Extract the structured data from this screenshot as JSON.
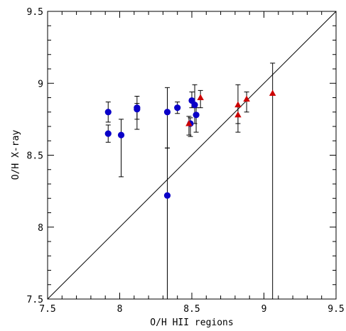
{
  "chart_data": {
    "type": "scatter",
    "xlabel": "O/H HII regions",
    "ylabel": "O/H X-ray",
    "xlim": [
      7.5,
      9.5
    ],
    "ylim": [
      7.5,
      9.5
    ],
    "x_ticks": [
      7.5,
      8,
      8.5,
      9,
      9.5
    ],
    "y_ticks": [
      7.5,
      8,
      8.5,
      9,
      9.5
    ],
    "x_tick_labels": [
      "7.5",
      "8",
      "8.5",
      "9",
      "9.5"
    ],
    "y_tick_labels": [
      "7.5",
      "8",
      "8.5",
      "9",
      "9.5"
    ],
    "grid": false,
    "reference_line": {
      "type": "one-to-one",
      "from": [
        7.5,
        7.5
      ],
      "to": [
        9.5,
        9.5
      ],
      "color": "#000000"
    },
    "series": [
      {
        "marker": "circle",
        "color": "#0a00c8",
        "points": [
          {
            "x": 7.92,
            "y": 8.8,
            "ylo": 8.73,
            "yhi": 8.87
          },
          {
            "x": 7.92,
            "y": 8.65,
            "ylo": 8.59,
            "yhi": 8.71
          },
          {
            "x": 8.01,
            "y": 8.64,
            "ylo": 8.35,
            "yhi": 8.75
          },
          {
            "x": 8.12,
            "y": 8.83,
            "ylo": 8.75,
            "yhi": 8.91
          },
          {
            "x": 8.12,
            "y": 8.82,
            "ylo": 8.68,
            "yhi": 8.86
          },
          {
            "x": 8.33,
            "y": 8.8,
            "ylo": 8.55,
            "yhi": 8.97
          },
          {
            "x": 8.33,
            "y": 8.22,
            "ylo": 7.5,
            "yhi": 8.55
          },
          {
            "x": 8.4,
            "y": 8.83,
            "ylo": 8.79,
            "yhi": 8.87
          },
          {
            "x": 8.49,
            "y": 8.72,
            "ylo": 8.63,
            "yhi": 8.76
          },
          {
            "x": 8.5,
            "y": 8.88,
            "ylo": 8.83,
            "yhi": 8.94
          },
          {
            "x": 8.52,
            "y": 8.85,
            "ylo": 8.72,
            "yhi": 8.99
          },
          {
            "x": 8.53,
            "y": 8.78,
            "ylo": 8.66,
            "yhi": 8.83
          }
        ]
      },
      {
        "marker": "triangle",
        "color": "#cc0000",
        "points": [
          {
            "x": 8.48,
            "y": 8.72,
            "ylo": 8.64,
            "yhi": 8.77
          },
          {
            "x": 8.56,
            "y": 8.9,
            "ylo": 8.83,
            "yhi": 8.95
          },
          {
            "x": 8.82,
            "y": 8.85,
            "ylo": 8.72,
            "yhi": 8.99
          },
          {
            "x": 8.82,
            "y": 8.78,
            "ylo": 8.66,
            "yhi": 8.84
          },
          {
            "x": 8.88,
            "y": 8.89,
            "ylo": 8.8,
            "yhi": 8.94
          },
          {
            "x": 9.06,
            "y": 8.93,
            "ylo": 7.5,
            "yhi": 9.14
          }
        ]
      }
    ]
  }
}
